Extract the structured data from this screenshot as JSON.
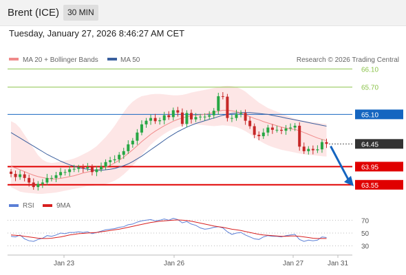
{
  "header": {
    "instrument": "Brent (ICE)",
    "timeframe": "30 MIN",
    "timestamp": "Tuesday, January 27, 2026 8:46:27 AM CET"
  },
  "legend": {
    "ma20": "MA 20 + Bollinger Bands",
    "ma50": "MA 50",
    "rsi": "RSI",
    "rsi_ma": "9MA",
    "credit": "Research © 2026 Trading Central"
  },
  "colors": {
    "ma20": "#f08a8a",
    "ma50": "#3a5f9e",
    "bollinger_fill": "#fde2e2",
    "candle_up": "#27a744",
    "candle_down": "#c62828",
    "resistance": "#8bc34a",
    "support": "#e00000",
    "pivot": "#1565c0",
    "last": "#333333",
    "rsi": "#5b7fd6",
    "rsi_ma": "#d81f1f"
  },
  "chart_data": {
    "type": "candlestick",
    "x_ticks": [
      "Jan 23",
      "Jan 26",
      "Jan 27",
      "Jan 31"
    ],
    "y_range": [
      63.35,
      66.18
    ],
    "levels": [
      {
        "name": "resistance-2",
        "value": 66.1,
        "label": "66.10",
        "kind": "resistance"
      },
      {
        "name": "resistance-1",
        "value": 65.7,
        "label": "65.70",
        "kind": "resistance"
      },
      {
        "name": "pivot",
        "value": 65.1,
        "label": "65.10",
        "kind": "pivot"
      },
      {
        "name": "last-price",
        "value": 64.45,
        "label": "64.45",
        "kind": "last"
      },
      {
        "name": "support-1",
        "value": 63.95,
        "label": "63.95",
        "kind": "support"
      },
      {
        "name": "support-2",
        "value": 63.55,
        "label": "63.55",
        "kind": "support"
      }
    ],
    "close": [
      63.79,
      63.72,
      63.78,
      63.7,
      63.6,
      63.5,
      63.57,
      63.6,
      63.7,
      63.7,
      63.76,
      63.83,
      63.83,
      63.89,
      63.9,
      63.93,
      63.91,
      63.94,
      63.83,
      63.89,
      63.95,
      64.05,
      64.09,
      64.11,
      64.21,
      64.29,
      64.44,
      64.52,
      64.7,
      64.88,
      64.96,
      65.02,
      64.95,
      64.97,
      65.08,
      65.04,
      65.19,
      65.14,
      64.89,
      65.13,
      64.99,
      65.04,
      65.05,
      65.05,
      65.08,
      65.18,
      65.5,
      65.49,
      65.02,
      65.02,
      65.11,
      65.13,
      64.96,
      64.84,
      64.65,
      64.62,
      64.7,
      64.81,
      64.76,
      64.76,
      64.74,
      64.79,
      64.81,
      64.85,
      64.39,
      64.29,
      64.34,
      64.31,
      64.33,
      64.49,
      64.45
    ],
    "ma20": [
      63.95,
      63.92,
      63.88,
      63.84,
      63.8,
      63.76,
      63.73,
      63.71,
      63.69,
      63.68,
      63.68,
      63.69,
      63.71,
      63.73,
      63.75,
      63.78,
      63.81,
      63.83,
      63.85,
      63.87,
      63.9,
      63.94,
      63.98,
      64.03,
      64.09,
      64.16,
      64.24,
      64.32,
      64.41,
      64.5,
      64.58,
      64.66,
      64.73,
      64.79,
      64.85,
      64.9,
      64.95,
      64.99,
      65.02,
      65.05,
      65.07,
      65.08,
      65.09,
      65.1,
      65.12,
      65.14,
      65.17,
      65.19,
      65.19,
      65.18,
      65.16,
      65.13,
      65.09,
      65.05,
      65.01,
      64.98,
      64.94,
      64.91,
      64.88,
      64.85,
      64.82,
      64.8,
      64.78,
      64.77,
      64.74,
      64.7,
      64.66,
      64.62,
      64.58,
      64.55,
      64.52
    ],
    "ma50": [
      64.7,
      64.64,
      64.58,
      64.52,
      64.46,
      64.4,
      64.34,
      64.28,
      64.22,
      64.17,
      64.12,
      64.07,
      64.03,
      63.99,
      63.96,
      63.93,
      63.91,
      63.89,
      63.88,
      63.87,
      63.87,
      63.88,
      63.89,
      63.91,
      63.94,
      63.97,
      64.01,
      64.06,
      64.12,
      64.18,
      64.25,
      64.32,
      64.39,
      64.46,
      64.53,
      64.6,
      64.66,
      64.72,
      64.77,
      64.82,
      64.86,
      64.9,
      64.93,
      64.96,
      64.99,
      65.02,
      65.05,
      65.08,
      65.1,
      65.12,
      65.13,
      65.14,
      65.14,
      65.14,
      65.13,
      65.12,
      65.11,
      65.1,
      65.08,
      65.06,
      65.04,
      65.02,
      65.0,
      64.98,
      64.96,
      64.94,
      64.92,
      64.9,
      64.88,
      64.86,
      64.84
    ],
    "bollinger_upper": [
      64.95,
      64.9,
      64.8,
      64.65,
      64.5,
      64.35,
      64.2,
      64.1,
      64.05,
      64.03,
      64.04,
      64.06,
      64.08,
      64.1,
      64.13,
      64.17,
      64.22,
      64.27,
      64.33,
      64.4,
      64.5,
      64.6,
      64.72,
      64.85,
      65.0,
      65.15,
      65.28,
      65.38,
      65.45,
      65.5,
      65.52,
      65.54,
      65.55,
      65.55,
      65.54,
      65.53,
      65.52,
      65.52,
      65.53,
      65.55,
      65.58,
      65.6,
      65.62,
      65.64,
      65.66,
      65.68,
      65.7,
      65.72,
      65.73,
      65.72,
      65.7,
      65.66,
      65.6,
      65.52,
      65.44,
      65.36,
      65.3,
      65.24,
      65.2,
      65.16,
      65.12,
      65.08,
      65.04,
      65.0,
      64.98,
      64.96,
      64.94,
      64.93,
      64.92,
      64.9,
      64.89
    ],
    "bollinger_lower": [
      63.5,
      63.45,
      63.4,
      63.38,
      63.37,
      63.36,
      63.35,
      63.35,
      63.36,
      63.37,
      63.38,
      63.4,
      63.42,
      63.44,
      63.46,
      63.48,
      63.5,
      63.52,
      63.53,
      63.54,
      63.55,
      63.57,
      63.6,
      63.64,
      63.7,
      63.78,
      63.87,
      63.97,
      64.08,
      64.2,
      64.32,
      64.43,
      64.52,
      64.6,
      64.67,
      64.73,
      64.78,
      64.82,
      64.85,
      64.87,
      64.88,
      64.88,
      64.87,
      64.86,
      64.85,
      64.84,
      64.85,
      64.86,
      64.85,
      64.84,
      64.82,
      64.78,
      64.73,
      64.67,
      64.6,
      64.53,
      64.47,
      64.42,
      64.38,
      64.35,
      64.32,
      64.3,
      64.28,
      64.26,
      64.24,
      64.22,
      64.21,
      64.2,
      64.19,
      64.18,
      64.17
    ],
    "projection": {
      "from": 64.4,
      "to": 63.55
    },
    "rsi_axis": {
      "range": [
        20,
        80
      ],
      "ticks": [
        "70",
        "50",
        "30"
      ],
      "tick_values": [
        70,
        50,
        30
      ]
    },
    "rsi": [
      45,
      44,
      47,
      41,
      38,
      37,
      40,
      42,
      46,
      45,
      47,
      50,
      49,
      51,
      51,
      52,
      51,
      52,
      49,
      51,
      53,
      55,
      56,
      57,
      59,
      60,
      63,
      64,
      67,
      69,
      70,
      71,
      69,
      70,
      72,
      70,
      73,
      71,
      66,
      68,
      64,
      62,
      58,
      56,
      57,
      59,
      60,
      58,
      52,
      48,
      50,
      51,
      47,
      44,
      41,
      40,
      44,
      46,
      45,
      45,
      44,
      46,
      47,
      48,
      40,
      37,
      39,
      38,
      39,
      44,
      43
    ],
    "rsi_ma": [
      47,
      46.5,
      46,
      45,
      44,
      43,
      42,
      41.5,
      41.5,
      42,
      43,
      44,
      45.5,
      47,
      48,
      49,
      49.5,
      50,
      50.5,
      51,
      52,
      53,
      54,
      55,
      56,
      57.5,
      59,
      60.5,
      62,
      63.5,
      65,
      66.5,
      67.5,
      68.5,
      69,
      69.5,
      70,
      70.5,
      70,
      69.5,
      68.5,
      67,
      65.5,
      64,
      62.5,
      61,
      60,
      59,
      57.5,
      56,
      55,
      54,
      52.5,
      51,
      49.5,
      48,
      47,
      46.5,
      46,
      45.5,
      45,
      45,
      45.5,
      45.5,
      45,
      44,
      43,
      42,
      41.5,
      41.5,
      41.5
    ]
  }
}
